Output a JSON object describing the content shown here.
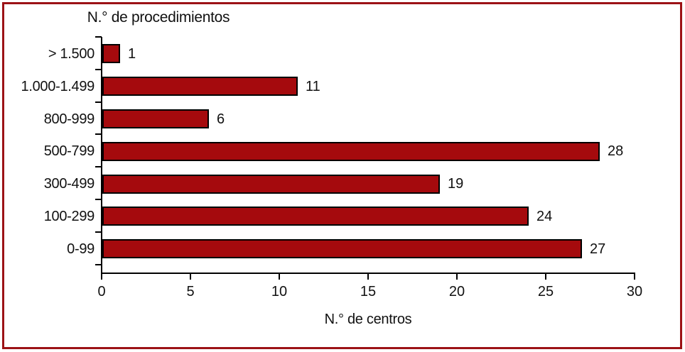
{
  "chart_data": {
    "type": "bar",
    "orientation": "horizontal",
    "title": "N.° de procedimientos",
    "xlabel": "N.° de centros",
    "categories": [
      "> 1.500",
      "1.000-1.499",
      "800-999",
      "500-799",
      "300-499",
      "100-299",
      "0-99"
    ],
    "values": [
      1,
      11,
      6,
      28,
      19,
      24,
      27
    ],
    "value_labels": [
      "1",
      "11",
      "6",
      "28",
      "19",
      "24",
      "27"
    ],
    "xticks": [
      0,
      5,
      10,
      15,
      20,
      25,
      30
    ],
    "xtick_labels": [
      "0",
      "5",
      "10",
      "15",
      "20",
      "25",
      "30"
    ],
    "xlim": [
      0,
      30
    ],
    "grid": false,
    "legend": null,
    "colors": {
      "bar_fill": "#A50A0D",
      "bar_border": "#000000",
      "axis": "#000000",
      "text": "#111111",
      "frame_border": "#9C1216",
      "background": "#FFFFFF"
    }
  }
}
